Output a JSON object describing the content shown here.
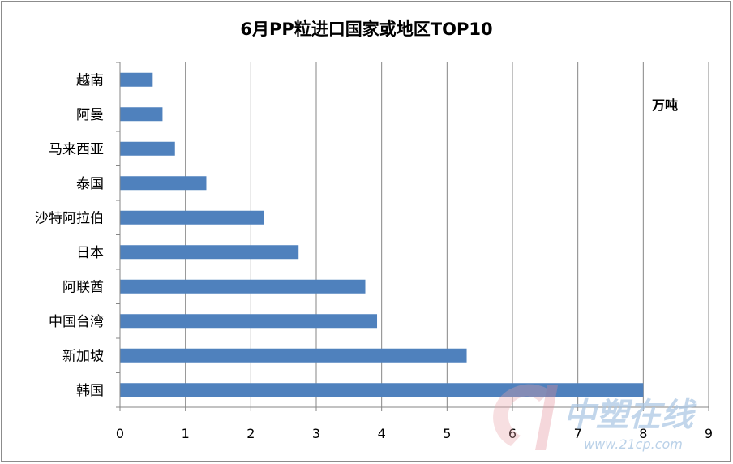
{
  "chart_data": {
    "type": "bar",
    "orientation": "horizontal",
    "title": "6月PP粒进口国家或地区TOP10",
    "unit": "万吨",
    "categories": [
      "韩国",
      "新加坡",
      "中国台湾",
      "阿联酋",
      "日本",
      "沙特阿拉伯",
      "泰国",
      "马来西亚",
      "阿曼",
      "越南"
    ],
    "values": [
      8.0,
      5.3,
      3.93,
      3.75,
      2.73,
      2.2,
      1.32,
      0.84,
      0.65,
      0.5
    ],
    "xlim": [
      0,
      9
    ],
    "xticks": [
      "0",
      "1",
      "2",
      "3",
      "4",
      "5",
      "6",
      "7",
      "8",
      "9"
    ],
    "bar_color": "#4f81bd",
    "grid": "vertical"
  },
  "watermark": {
    "text": "中塑在线",
    "url": "www.21cp.com"
  }
}
